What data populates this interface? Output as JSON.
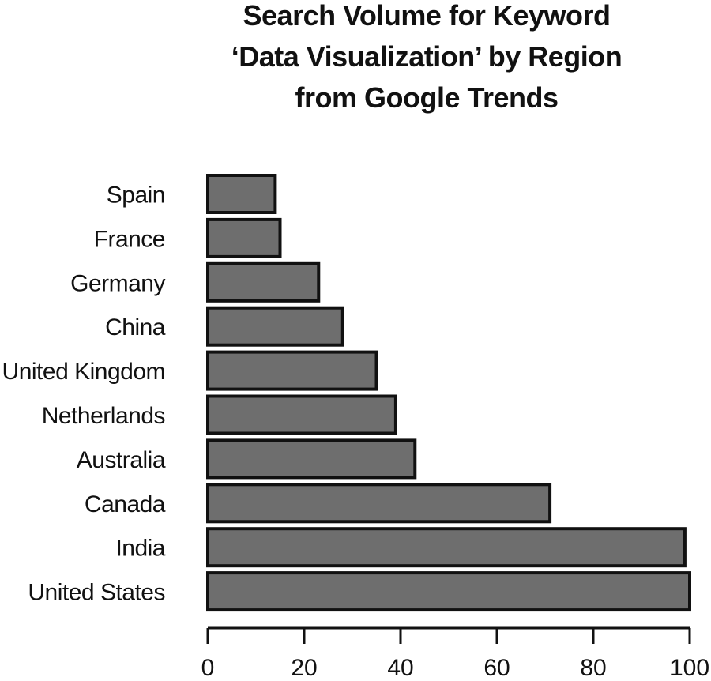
{
  "chart_data": {
    "type": "bar",
    "orientation": "horizontal",
    "title_lines": [
      "Search Volume for Keyword",
      "‘Data Visualization’ by Region",
      "from Google Trends"
    ],
    "categories": [
      "Spain",
      "France",
      "Germany",
      "China",
      "United Kingdom",
      "Netherlands",
      "Australia",
      "Canada",
      "India",
      "United States"
    ],
    "values": [
      14,
      15,
      23,
      28,
      35,
      39,
      43,
      71,
      99,
      100
    ],
    "xlabel": "",
    "ylabel": "",
    "xlim": [
      0,
      100
    ],
    "xticks": [
      0,
      20,
      40,
      60,
      80,
      100
    ],
    "grid": false,
    "legend": "none",
    "bar_color": "#6e6e6e",
    "edge_color": "#111111"
  }
}
